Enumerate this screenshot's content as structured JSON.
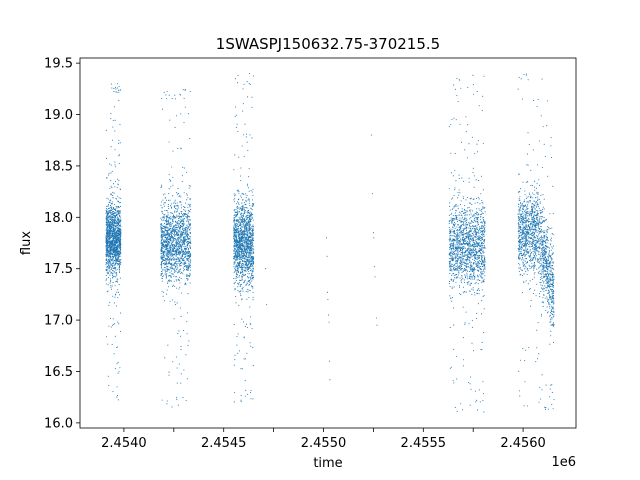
{
  "chart_data": {
    "type": "scatter",
    "title": "1SWASPJ150632.75-370215.5",
    "xlabel": "time",
    "ylabel": "flux",
    "x_offset_label": "1e6",
    "xlim": [
      2453730,
      2456215
    ],
    "ylim": [
      15.95,
      19.55
    ],
    "x_ticks": [
      2453950,
      2454200,
      2454450,
      2454700,
      2454950,
      2455200,
      2455450,
      2455700,
      2455950
    ],
    "x_tick_labels": [
      "2.4540",
      "",
      "2.4545",
      "",
      "2.4550",
      "",
      "2.4555",
      "",
      "2.4560"
    ],
    "y_ticks": [
      16.0,
      16.5,
      17.0,
      17.5,
      18.0,
      18.5,
      19.0,
      19.5
    ],
    "y_tick_labels": [
      "16.0",
      "16.5",
      "17.0",
      "17.5",
      "18.0",
      "18.5",
      "19.0",
      "19.5"
    ],
    "grid": false,
    "marker_color": "#1f77b4",
    "seasons": [
      {
        "x_start": 2453860,
        "x_end": 2453935,
        "flux_center": 17.78,
        "flux_spread": 0.17,
        "flux_min": 16.22,
        "flux_max": 19.3,
        "density": "high"
      },
      {
        "x_start": 2454135,
        "x_end": 2454285,
        "flux_center": 17.76,
        "flux_spread": 0.19,
        "flux_min": 16.1,
        "flux_max": 19.25,
        "density": "high"
      },
      {
        "x_start": 2454500,
        "x_end": 2454600,
        "flux_center": 17.75,
        "flux_spread": 0.2,
        "flux_min": 16.2,
        "flux_max": 19.4,
        "density": "high"
      },
      {
        "x_start": 2455580,
        "x_end": 2455760,
        "flux_center": 17.72,
        "flux_spread": 0.2,
        "flux_min": 16.1,
        "flux_max": 19.4,
        "density": "high"
      },
      {
        "x_start": 2455925,
        "x_end": 2456105,
        "flux_center": 17.85,
        "flux_spread": 0.2,
        "flux_min": 16.13,
        "flux_max": 19.4,
        "density": "high",
        "trend_end": 17.25
      }
    ],
    "sparse_points": [
      [
        2454965,
        17.8
      ],
      [
        2454968,
        17.62
      ],
      [
        2454970,
        17.27
      ],
      [
        2454972,
        17.2
      ],
      [
        2454975,
        17.05
      ],
      [
        2454978,
        16.98
      ],
      [
        2454980,
        16.6
      ],
      [
        2454982,
        16.42
      ],
      [
        2455190,
        18.8
      ],
      [
        2455195,
        18.23
      ],
      [
        2455200,
        17.85
      ],
      [
        2455202,
        17.8
      ],
      [
        2455205,
        17.52
      ],
      [
        2455208,
        17.42
      ],
      [
        2455215,
        17.02
      ],
      [
        2455218,
        16.95
      ],
      [
        2454660,
        17.5
      ],
      [
        2454665,
        17.15
      ]
    ]
  }
}
